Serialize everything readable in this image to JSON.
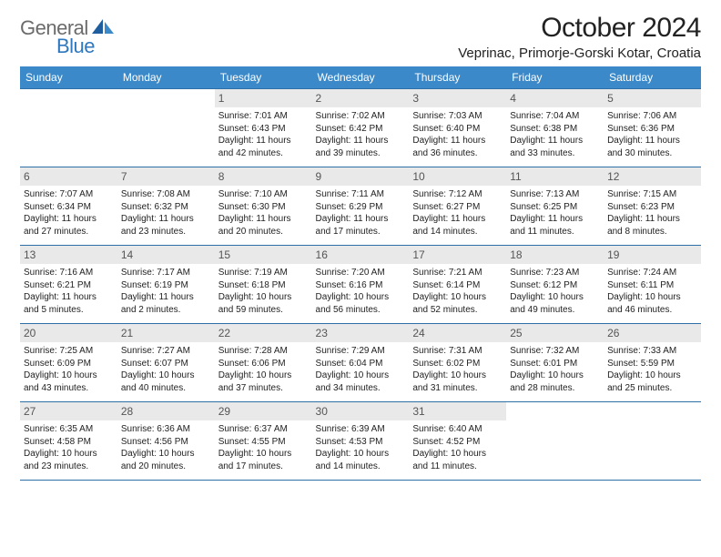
{
  "brand": {
    "word1": "General",
    "word2": "Blue"
  },
  "title": "October 2024",
  "location": "Veprinac, Primorje-Gorski Kotar, Croatia",
  "colors": {
    "header_bg": "#3b89c9",
    "header_text": "#ffffff",
    "rule": "#2f6fa8",
    "daynum_bg": "#e9e9e9",
    "logo_gray": "#6b6b6b",
    "logo_blue": "#2f78bd"
  },
  "weekdays": [
    "Sunday",
    "Monday",
    "Tuesday",
    "Wednesday",
    "Thursday",
    "Friday",
    "Saturday"
  ],
  "weeks": [
    [
      null,
      null,
      {
        "n": "1",
        "sr": "Sunrise: 7:01 AM",
        "ss": "Sunset: 6:43 PM",
        "d1": "Daylight: 11 hours",
        "d2": "and 42 minutes."
      },
      {
        "n": "2",
        "sr": "Sunrise: 7:02 AM",
        "ss": "Sunset: 6:42 PM",
        "d1": "Daylight: 11 hours",
        "d2": "and 39 minutes."
      },
      {
        "n": "3",
        "sr": "Sunrise: 7:03 AM",
        "ss": "Sunset: 6:40 PM",
        "d1": "Daylight: 11 hours",
        "d2": "and 36 minutes."
      },
      {
        "n": "4",
        "sr": "Sunrise: 7:04 AM",
        "ss": "Sunset: 6:38 PM",
        "d1": "Daylight: 11 hours",
        "d2": "and 33 minutes."
      },
      {
        "n": "5",
        "sr": "Sunrise: 7:06 AM",
        "ss": "Sunset: 6:36 PM",
        "d1": "Daylight: 11 hours",
        "d2": "and 30 minutes."
      }
    ],
    [
      {
        "n": "6",
        "sr": "Sunrise: 7:07 AM",
        "ss": "Sunset: 6:34 PM",
        "d1": "Daylight: 11 hours",
        "d2": "and 27 minutes."
      },
      {
        "n": "7",
        "sr": "Sunrise: 7:08 AM",
        "ss": "Sunset: 6:32 PM",
        "d1": "Daylight: 11 hours",
        "d2": "and 23 minutes."
      },
      {
        "n": "8",
        "sr": "Sunrise: 7:10 AM",
        "ss": "Sunset: 6:30 PM",
        "d1": "Daylight: 11 hours",
        "d2": "and 20 minutes."
      },
      {
        "n": "9",
        "sr": "Sunrise: 7:11 AM",
        "ss": "Sunset: 6:29 PM",
        "d1": "Daylight: 11 hours",
        "d2": "and 17 minutes."
      },
      {
        "n": "10",
        "sr": "Sunrise: 7:12 AM",
        "ss": "Sunset: 6:27 PM",
        "d1": "Daylight: 11 hours",
        "d2": "and 14 minutes."
      },
      {
        "n": "11",
        "sr": "Sunrise: 7:13 AM",
        "ss": "Sunset: 6:25 PM",
        "d1": "Daylight: 11 hours",
        "d2": "and 11 minutes."
      },
      {
        "n": "12",
        "sr": "Sunrise: 7:15 AM",
        "ss": "Sunset: 6:23 PM",
        "d1": "Daylight: 11 hours",
        "d2": "and 8 minutes."
      }
    ],
    [
      {
        "n": "13",
        "sr": "Sunrise: 7:16 AM",
        "ss": "Sunset: 6:21 PM",
        "d1": "Daylight: 11 hours",
        "d2": "and 5 minutes."
      },
      {
        "n": "14",
        "sr": "Sunrise: 7:17 AM",
        "ss": "Sunset: 6:19 PM",
        "d1": "Daylight: 11 hours",
        "d2": "and 2 minutes."
      },
      {
        "n": "15",
        "sr": "Sunrise: 7:19 AM",
        "ss": "Sunset: 6:18 PM",
        "d1": "Daylight: 10 hours",
        "d2": "and 59 minutes."
      },
      {
        "n": "16",
        "sr": "Sunrise: 7:20 AM",
        "ss": "Sunset: 6:16 PM",
        "d1": "Daylight: 10 hours",
        "d2": "and 56 minutes."
      },
      {
        "n": "17",
        "sr": "Sunrise: 7:21 AM",
        "ss": "Sunset: 6:14 PM",
        "d1": "Daylight: 10 hours",
        "d2": "and 52 minutes."
      },
      {
        "n": "18",
        "sr": "Sunrise: 7:23 AM",
        "ss": "Sunset: 6:12 PM",
        "d1": "Daylight: 10 hours",
        "d2": "and 49 minutes."
      },
      {
        "n": "19",
        "sr": "Sunrise: 7:24 AM",
        "ss": "Sunset: 6:11 PM",
        "d1": "Daylight: 10 hours",
        "d2": "and 46 minutes."
      }
    ],
    [
      {
        "n": "20",
        "sr": "Sunrise: 7:25 AM",
        "ss": "Sunset: 6:09 PM",
        "d1": "Daylight: 10 hours",
        "d2": "and 43 minutes."
      },
      {
        "n": "21",
        "sr": "Sunrise: 7:27 AM",
        "ss": "Sunset: 6:07 PM",
        "d1": "Daylight: 10 hours",
        "d2": "and 40 minutes."
      },
      {
        "n": "22",
        "sr": "Sunrise: 7:28 AM",
        "ss": "Sunset: 6:06 PM",
        "d1": "Daylight: 10 hours",
        "d2": "and 37 minutes."
      },
      {
        "n": "23",
        "sr": "Sunrise: 7:29 AM",
        "ss": "Sunset: 6:04 PM",
        "d1": "Daylight: 10 hours",
        "d2": "and 34 minutes."
      },
      {
        "n": "24",
        "sr": "Sunrise: 7:31 AM",
        "ss": "Sunset: 6:02 PM",
        "d1": "Daylight: 10 hours",
        "d2": "and 31 minutes."
      },
      {
        "n": "25",
        "sr": "Sunrise: 7:32 AM",
        "ss": "Sunset: 6:01 PM",
        "d1": "Daylight: 10 hours",
        "d2": "and 28 minutes."
      },
      {
        "n": "26",
        "sr": "Sunrise: 7:33 AM",
        "ss": "Sunset: 5:59 PM",
        "d1": "Daylight: 10 hours",
        "d2": "and 25 minutes."
      }
    ],
    [
      {
        "n": "27",
        "sr": "Sunrise: 6:35 AM",
        "ss": "Sunset: 4:58 PM",
        "d1": "Daylight: 10 hours",
        "d2": "and 23 minutes."
      },
      {
        "n": "28",
        "sr": "Sunrise: 6:36 AM",
        "ss": "Sunset: 4:56 PM",
        "d1": "Daylight: 10 hours",
        "d2": "and 20 minutes."
      },
      {
        "n": "29",
        "sr": "Sunrise: 6:37 AM",
        "ss": "Sunset: 4:55 PM",
        "d1": "Daylight: 10 hours",
        "d2": "and 17 minutes."
      },
      {
        "n": "30",
        "sr": "Sunrise: 6:39 AM",
        "ss": "Sunset: 4:53 PM",
        "d1": "Daylight: 10 hours",
        "d2": "and 14 minutes."
      },
      {
        "n": "31",
        "sr": "Sunrise: 6:40 AM",
        "ss": "Sunset: 4:52 PM",
        "d1": "Daylight: 10 hours",
        "d2": "and 11 minutes."
      },
      null,
      null
    ]
  ]
}
